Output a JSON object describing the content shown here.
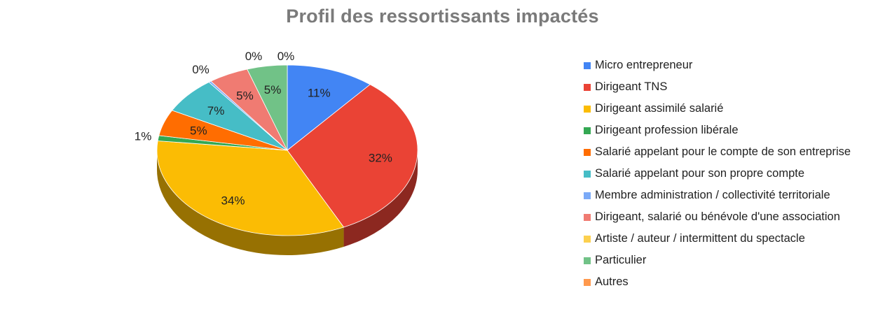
{
  "chart_data": {
    "type": "pie",
    "title": "Profil des ressortissants impactés",
    "legend_position": "right",
    "slices": [
      {
        "name": "Micro entrepreneur",
        "value": 11,
        "label": "11%",
        "color": "#4285f4"
      },
      {
        "name": "Dirigeant TNS",
        "value": 32,
        "label": "32%",
        "color": "#ea4335"
      },
      {
        "name": "Dirigeant assimilé salarié",
        "value": 34,
        "label": "34%",
        "color": "#fbbc04"
      },
      {
        "name": "Dirigeant profession libérale",
        "value": 1,
        "label": "1%",
        "color": "#34a853"
      },
      {
        "name": "Salarié appelant pour le compte de son entreprise",
        "value": 5,
        "label": "5%",
        "color": "#ff6d01"
      },
      {
        "name": "Salarié appelant pour son propre compte",
        "value": 7,
        "label": "7%",
        "color": "#46bdc6"
      },
      {
        "name": "Membre administration / collectivité territoriale",
        "value": 0.3,
        "label": "0%",
        "color": "#7baaf7"
      },
      {
        "name": "Dirigeant, salarié ou bénévole d'une association",
        "value": 5,
        "label": "5%",
        "color": "#f07b72"
      },
      {
        "name": "Artiste / auteur / intermittent du spectacle",
        "value": 0,
        "label": "0%",
        "color": "#fcd04f"
      },
      {
        "name": "Particulier",
        "value": 5,
        "label": "5%",
        "color": "#71c287"
      },
      {
        "name": "Autres",
        "value": 0,
        "label": "0%",
        "color": "#ff994d"
      }
    ]
  }
}
